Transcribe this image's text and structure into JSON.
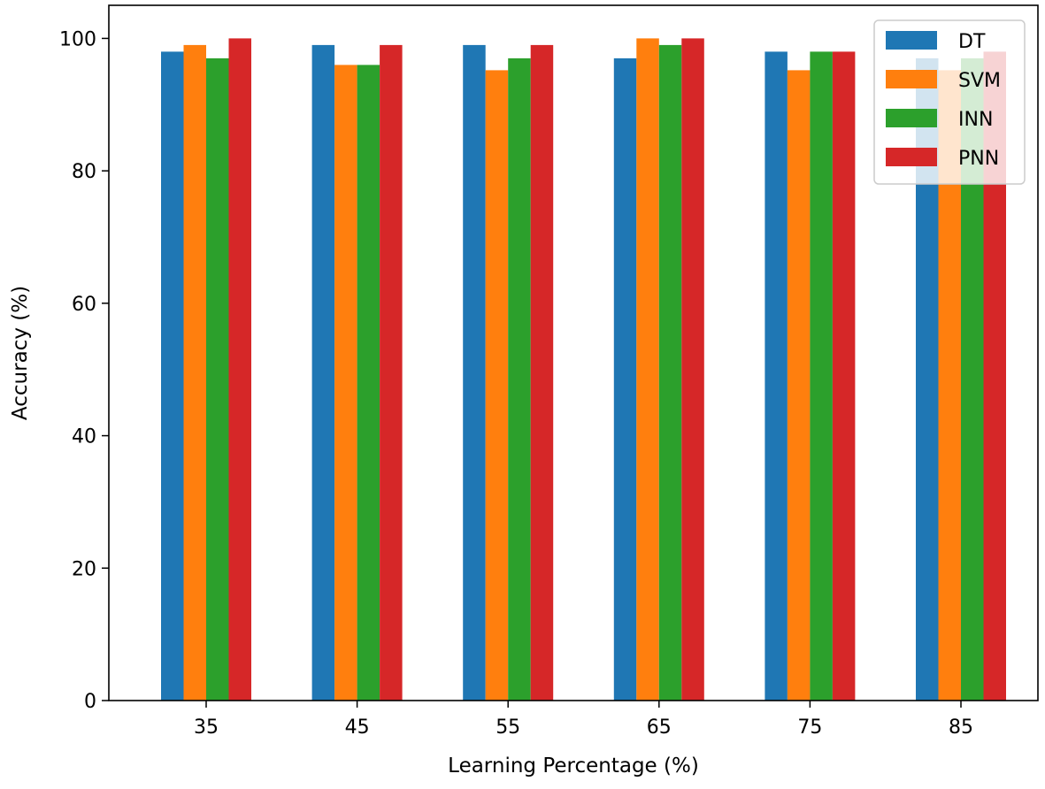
{
  "chart_data": {
    "type": "bar",
    "title": "",
    "xlabel": "Learning Percentage (%)",
    "ylabel": "Accuracy (%)",
    "categories": [
      "35",
      "45",
      "55",
      "65",
      "75",
      "85"
    ],
    "ylim": [
      0,
      105
    ],
    "yticks": [
      0,
      20,
      40,
      60,
      80,
      100
    ],
    "grid": false,
    "legend_position": "top-right",
    "series": [
      {
        "name": "DT",
        "color": "#1f77b4",
        "values": [
          98,
          99,
          99,
          97,
          98,
          97
        ]
      },
      {
        "name": "SVM",
        "color": "#ff7f0e",
        "values": [
          99,
          96,
          95.2,
          100,
          95.2,
          95.2
        ]
      },
      {
        "name": "INN",
        "color": "#2ca02c",
        "values": [
          97,
          96,
          97,
          99,
          98,
          97
        ]
      },
      {
        "name": "PNN",
        "color": "#d62728",
        "values": [
          100,
          99,
          99,
          100,
          98,
          98
        ]
      }
    ]
  }
}
